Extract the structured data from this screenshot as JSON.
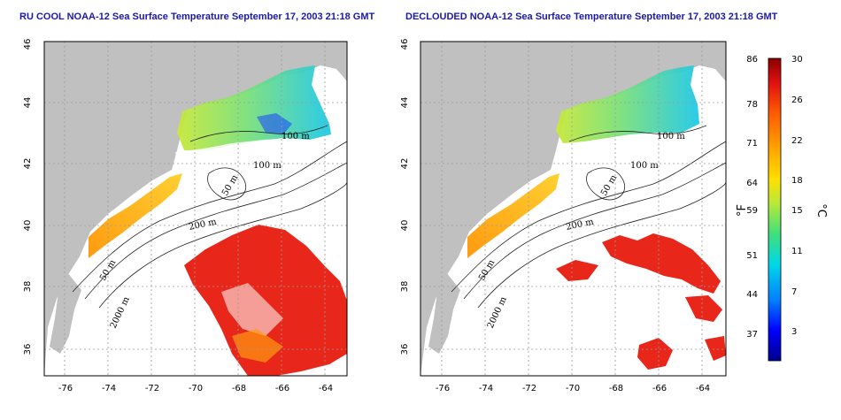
{
  "panels": [
    {
      "title": "RU COOL NOAA-12 Sea Surface Temperature September 17, 2003 21:18 GMT",
      "clouded": true
    },
    {
      "title": "DECLOUDED NOAA-12 Sea Surface Temperature September 17, 2003 21:18 GMT",
      "clouded": false
    }
  ],
  "axes": {
    "lon_ticks": [
      "-76",
      "-74",
      "-72",
      "-70",
      "-68",
      "-66",
      "-64"
    ],
    "lat_ticks": [
      "36",
      "38",
      "40",
      "42",
      "44",
      "46"
    ]
  },
  "contours": {
    "left": [
      "100 m",
      "100 m",
      "50 m",
      "200 m",
      "50 m",
      "2000 m"
    ],
    "right": [
      "100 m",
      "100 m",
      "50 m",
      "200 m",
      "50 m",
      "2000 m"
    ]
  },
  "colorbar": {
    "f_unit": "°F",
    "c_unit": "°C",
    "f_labels": [
      "86",
      "78",
      "71",
      "64",
      "59",
      "51",
      "44",
      "37"
    ],
    "c_labels": [
      "30",
      "26",
      "22",
      "18",
      "15",
      "11",
      "7",
      "3"
    ],
    "colors": [
      "#00008b",
      "#0000ff",
      "#007fff",
      "#00d8e8",
      "#3fe07a",
      "#b8e83a",
      "#ffe000",
      "#ffa500",
      "#ff5a00",
      "#e01010",
      "#8b0000"
    ]
  },
  "colors": {
    "land": "#c0c0c0",
    "ocean_missing": "#ffffff",
    "title": "#1a1aa6"
  }
}
